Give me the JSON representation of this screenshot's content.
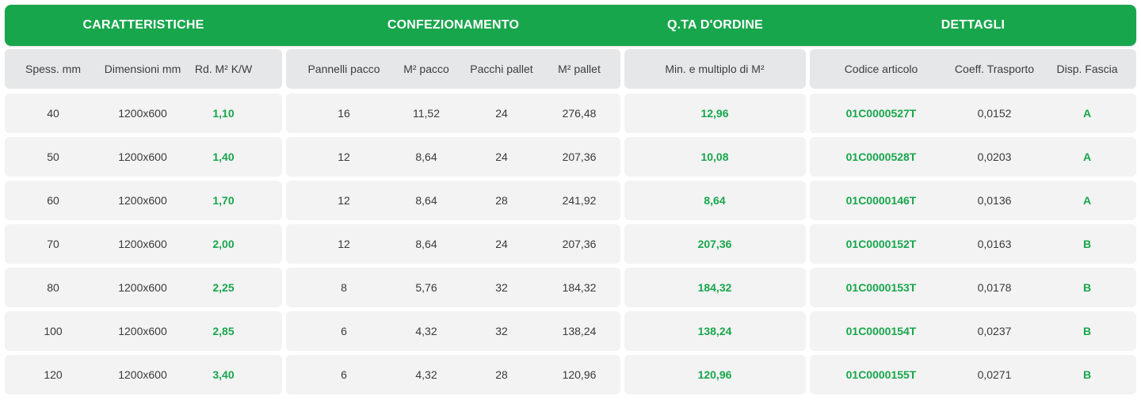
{
  "groups": [
    {
      "title": "CARATTERISTICHE"
    },
    {
      "title": "CONFEZIONAMENTO"
    },
    {
      "title": "Q.TA D'ORDINE"
    },
    {
      "title": "DETTAGLI"
    }
  ],
  "columns": [
    "Spess. mm",
    "Dimensioni mm",
    "Rd. M² K/W",
    "Pannelli pacco",
    "M² pacco",
    "Pacchi pallet",
    "M² pallet",
    "Min. e multiplo di M²",
    "Codice articolo",
    "Coeff. Trasporto",
    "Disp. Fascia"
  ],
  "rows": [
    [
      "40",
      "1200x600",
      "1,10",
      "16",
      "11,52",
      "24",
      "276,48",
      "12,96",
      "01C0000527T",
      "0,0152",
      "A"
    ],
    [
      "50",
      "1200x600",
      "1,40",
      "12",
      "8,64",
      "24",
      "207,36",
      "10,08",
      "01C0000528T",
      "0,0203",
      "A"
    ],
    [
      "60",
      "1200x600",
      "1,70",
      "12",
      "8,64",
      "28",
      "241,92",
      "8,64",
      "01C0000146T",
      "0,0136",
      "A"
    ],
    [
      "70",
      "1200x600",
      "2,00",
      "12",
      "8,64",
      "24",
      "207,36",
      "207,36",
      "01C0000152T",
      "0,0163",
      "B"
    ],
    [
      "80",
      "1200x600",
      "2,25",
      "8",
      "5,76",
      "32",
      "184,32",
      "184,32",
      "01C0000153T",
      "0,0178",
      "B"
    ],
    [
      "100",
      "1200x600",
      "2,85",
      "6",
      "4,32",
      "32",
      "138,24",
      "138,24",
      "01C0000154T",
      "0,0237",
      "B"
    ],
    [
      "120",
      "1200x600",
      "3,40",
      "6",
      "4,32",
      "28",
      "120,96",
      "120,96",
      "01C0000155T",
      "0,0271",
      "B"
    ]
  ],
  "colors": {
    "accent_green": "#18a64c",
    "header_row_bg": "#e6e7e9",
    "cell_bg": "#f3f3f3"
  }
}
